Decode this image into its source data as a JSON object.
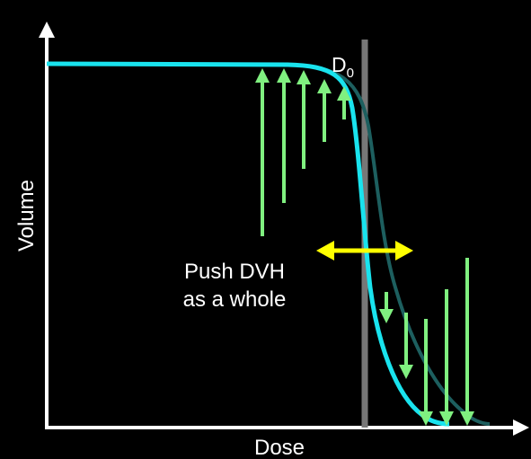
{
  "labels": {
    "d0": {
      "base": "D",
      "subscript": "0"
    },
    "annotation": [
      "Push DVH",
      "as a whole"
    ],
    "y_axis": "Volume",
    "x_axis": "Dose"
  }
}
